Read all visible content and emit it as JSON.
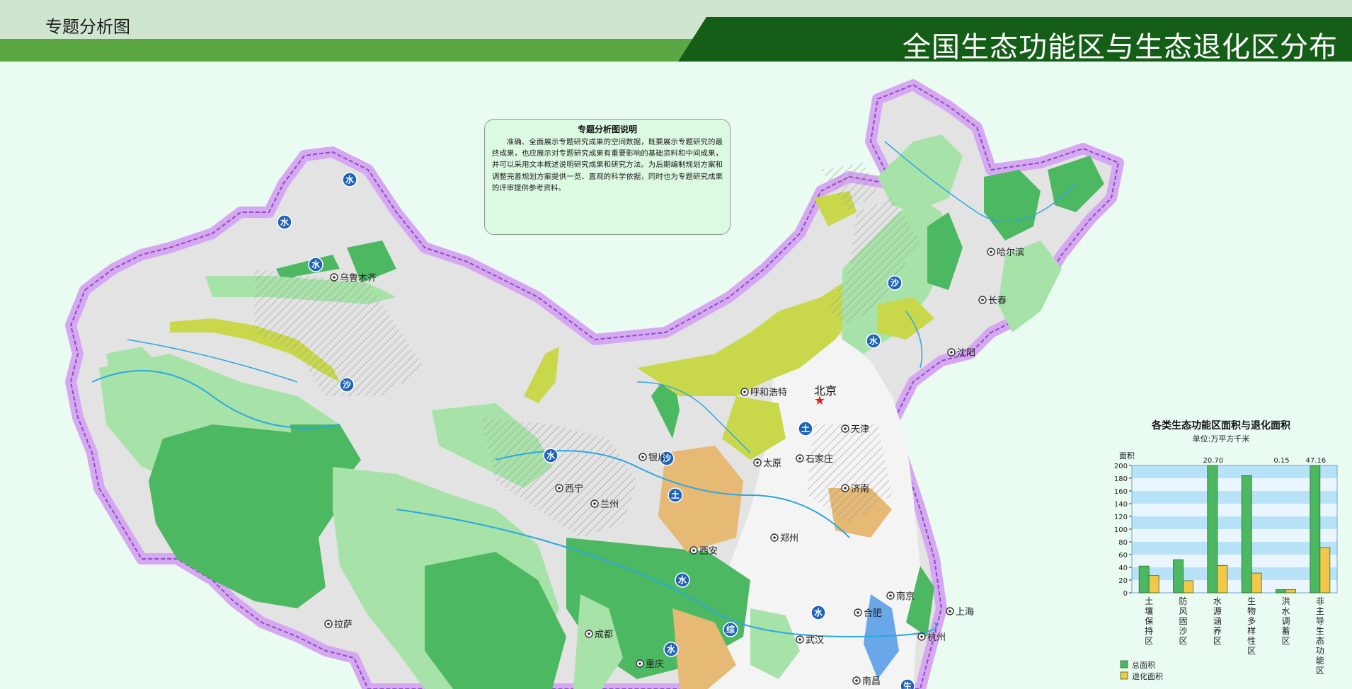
{
  "header": {
    "breadcrumb": "专题分析图",
    "title": "全国生态功能区与生态退化区分布"
  },
  "explanation": {
    "title": "专题分析图说明",
    "body": "准确、全面展示专题研究成果的空间数据，既要展示专题研究的最终成果，也应展示对专题研究成果有重要影响的基础资料和中间成果，并可以采用文本概述说明研究成果和研究方法。为后期编制规划方案和调整完善规划方案提供一览、直观的科学依据，同时也为专题研究成果的评审提供参考资料。"
  },
  "map": {
    "colors": {
      "border_glow": "#d6a8f2",
      "border_line": "#8a4fbf",
      "terrain": "#e3e3e3",
      "zone_green": "#4db862",
      "zone_lightgreen": "#a7e3a9",
      "zone_yellowgreen": "#c9d84b",
      "zone_tan": "#e6b974",
      "zone_blue": "#6aa7e8",
      "river": "#2ba7e0",
      "badge": "#1f63b8",
      "capital_star": "#e02020"
    },
    "cities": [
      {
        "name": "乌鲁木齐",
        "capital": false
      },
      {
        "name": "哈尔滨",
        "capital": false
      },
      {
        "name": "长春",
        "capital": false
      },
      {
        "name": "沈阳",
        "capital": false
      },
      {
        "name": "呼和浩特",
        "capital": false
      },
      {
        "name": "北京",
        "capital": true
      },
      {
        "name": "天津",
        "capital": false
      },
      {
        "name": "石家庄",
        "capital": false
      },
      {
        "name": "太原",
        "capital": false
      },
      {
        "name": "济南",
        "capital": false
      },
      {
        "name": "银川",
        "capital": false
      },
      {
        "name": "西宁",
        "capital": false
      },
      {
        "name": "兰州",
        "capital": false
      },
      {
        "name": "西安",
        "capital": false
      },
      {
        "name": "郑州",
        "capital": false
      },
      {
        "name": "南京",
        "capital": false
      },
      {
        "name": "合肥",
        "capital": false
      },
      {
        "name": "上海",
        "capital": false
      },
      {
        "name": "武汉",
        "capital": false
      },
      {
        "name": "杭州",
        "capital": false
      },
      {
        "name": "成都",
        "capital": false
      },
      {
        "name": "重庆",
        "capital": false
      },
      {
        "name": "拉萨",
        "capital": false
      },
      {
        "name": "南昌",
        "capital": false
      }
    ],
    "badges": [
      "水",
      "水",
      "水",
      "沙",
      "沙",
      "沙",
      "水",
      "水",
      "土",
      "土",
      "水",
      "综",
      "水",
      "水",
      "生"
    ]
  },
  "chart_data": {
    "type": "bar",
    "title": "各类生态功能区面积与退化面积",
    "subtitle": "单位:万平方千米",
    "ylabel": "面积",
    "ylim": [
      0,
      200
    ],
    "y_ticks": [
      0,
      20,
      40,
      60,
      80,
      100,
      120,
      140,
      160,
      180,
      200
    ],
    "categories": [
      "土壤保持区",
      "防风固沙区",
      "水源涵养区",
      "生物多样性区",
      "洪水调蓄区",
      "非主导生态功能区"
    ],
    "series": [
      {
        "name": "总面积",
        "color": "#4db862",
        "values": [
          42,
          52,
          200,
          184,
          5,
          200
        ]
      },
      {
        "name": "退化面积",
        "color": "#f2c84b",
        "values": [
          27,
          19,
          43,
          31,
          5,
          71
        ]
      }
    ],
    "value_labels": [
      "",
      "",
      "20.70",
      "",
      "0.15",
      "47.16"
    ],
    "legend_position": "bottom-left"
  }
}
